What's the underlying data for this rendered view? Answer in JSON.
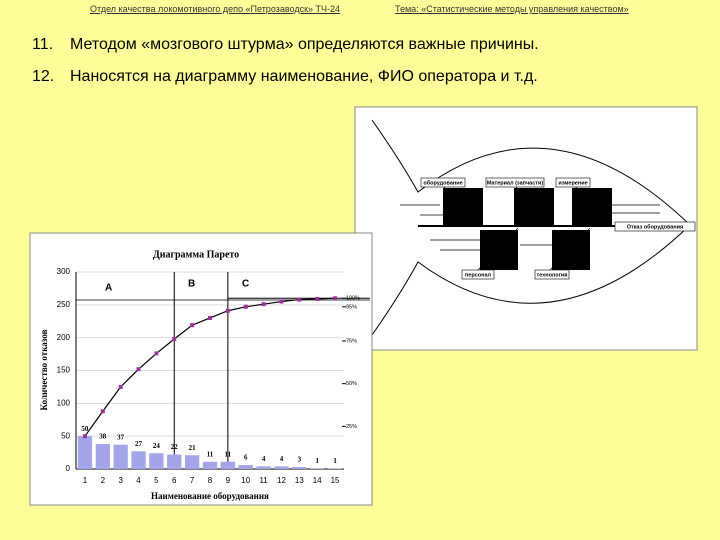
{
  "header": {
    "department": "Отдел качества локомотивного депо «Петрозаводск» ТЧ-24",
    "topic": "Тема: «Статистические методы управления качеством»"
  },
  "items": [
    {
      "number": "11.",
      "text": "Методом «мозгового штурма» определяются важные причины."
    },
    {
      "number": "12.",
      "text": "Наносятся на диаграмму наименование, ФИО оператора и т.д."
    }
  ],
  "diagram": {
    "labels": [
      "оборудование",
      "Материал (запчасти)",
      "измерение",
      "персонал",
      "технология",
      "Отказ оборудования"
    ]
  },
  "chart_data": {
    "type": "bar",
    "title": "Диаграмма Парето",
    "x_label": "Наименование оборудования",
    "y_label": "Количество отказов",
    "categories": [
      "1",
      "2",
      "3",
      "4",
      "5",
      "6",
      "7",
      "8",
      "9",
      "10",
      "11",
      "12",
      "13",
      "14",
      "15"
    ],
    "series": [
      {
        "color": "#a4a4e8",
        "values": [
          50,
          38,
          37,
          27,
          24,
          22,
          21,
          11,
          11,
          6,
          4,
          4,
          3,
          1,
          1
        ]
      },
      {
        "type": "line",
        "color": "#993399",
        "values": [
          50,
          88,
          125,
          152,
          176,
          198,
          219,
          230,
          241,
          247,
          251,
          255,
          258,
          259,
          260
        ]
      }
    ],
    "ylim": [
      0,
      300
    ],
    "yticks": [
      0,
      50,
      100,
      150,
      200,
      250,
      300
    ],
    "y2lim": [
      0,
      115.4
    ],
    "y2ticks": [
      {
        "value": 100,
        "label": "100%"
      },
      {
        "value": 95,
        "label": "95%"
      },
      {
        "value": 75,
        "label": "75%"
      },
      {
        "value": 50,
        "label": "50%"
      },
      {
        "value": 25,
        "label": "25%"
      }
    ],
    "annotations": [
      "A",
      "B",
      "C"
    ]
  }
}
